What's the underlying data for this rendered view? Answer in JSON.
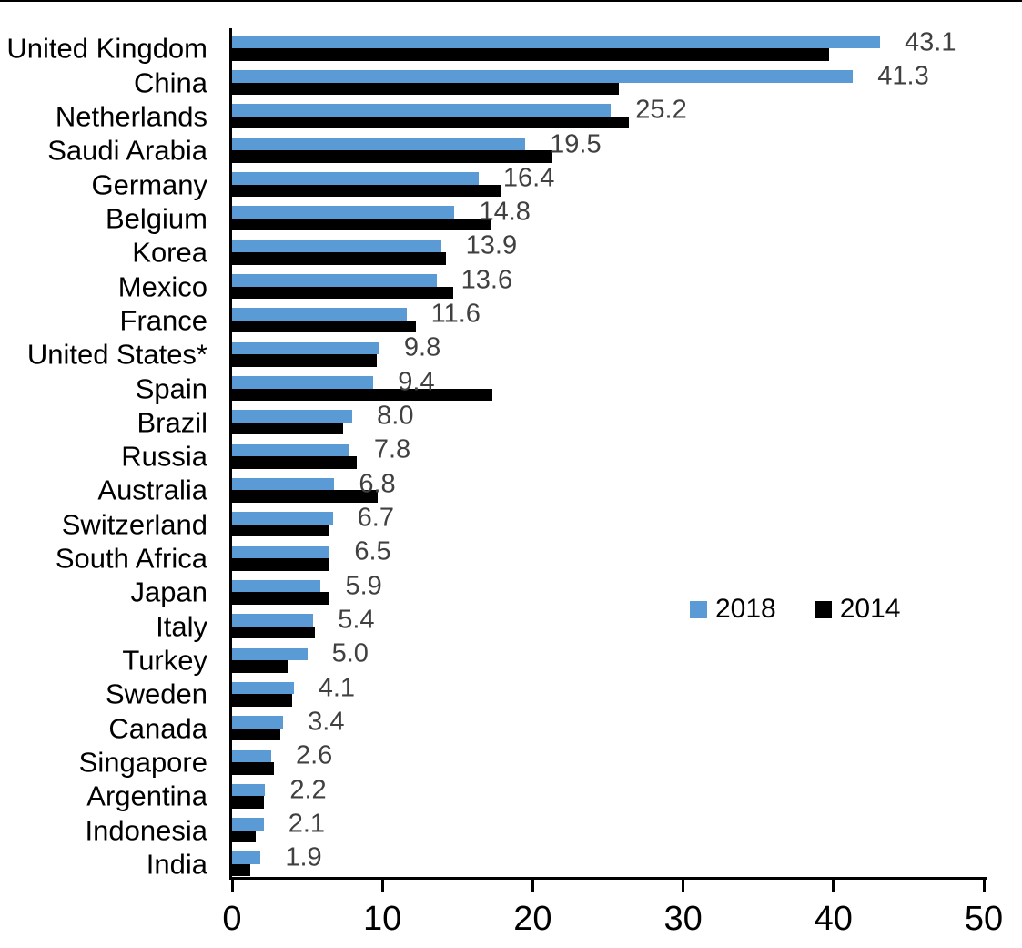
{
  "chart_data": {
    "type": "bar",
    "orientation": "horizontal",
    "title": "",
    "xlabel": "",
    "ylabel": "",
    "xlim": [
      0,
      50
    ],
    "x_ticks": [
      0,
      10,
      20,
      30,
      40,
      50
    ],
    "grid": false,
    "legend_position": "middle-right",
    "value_labels_series": "2018",
    "value_label_color": "#404040",
    "axis_color": "#000000",
    "categories": [
      "United Kingdom",
      "China",
      "Netherlands",
      "Saudi Arabia",
      "Germany",
      "Belgium",
      "Korea",
      "Mexico",
      "France",
      "United States*",
      "Spain",
      "Brazil",
      "Russia",
      "Australia",
      "Switzerland",
      "South Africa",
      "Japan",
      "Italy",
      "Turkey",
      "Sweden",
      "Canada",
      "Singapore",
      "Argentina",
      "Indonesia",
      "India"
    ],
    "series": [
      {
        "name": "2018",
        "color": "#5B9BD5",
        "values": [
          43.1,
          41.3,
          25.2,
          19.5,
          16.4,
          14.8,
          13.9,
          13.6,
          11.6,
          9.8,
          9.4,
          8.0,
          7.8,
          6.8,
          6.7,
          6.5,
          5.9,
          5.4,
          5.0,
          4.1,
          3.4,
          2.6,
          2.2,
          2.1,
          1.9
        ]
      },
      {
        "name": "2014",
        "color": "#000000",
        "values": [
          39.7,
          25.7,
          26.4,
          21.3,
          17.9,
          17.2,
          14.2,
          14.7,
          12.2,
          9.6,
          17.3,
          7.4,
          8.3,
          9.7,
          6.4,
          6.4,
          6.4,
          5.5,
          3.7,
          4.0,
          3.2,
          2.8,
          2.1,
          1.6,
          1.2
        ]
      }
    ]
  }
}
